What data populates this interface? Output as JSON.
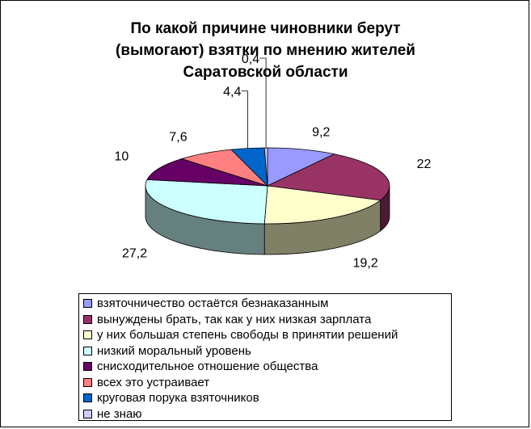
{
  "chart_data": {
    "type": "pie",
    "title": "По какой причине чиновники берут\n(вымогают) взятки по мнению жителей\nСаратовской области",
    "categories": [
      "взяточничество остаётся безнаказанным",
      "вынуждены брать, так как у них низкая зарплата",
      "у них большая степень свободы в принятии решений",
      "низкий моральный уровень",
      "снисходительное отношение общества",
      "всех это устраивает",
      "круговая порука взяточников",
      "не знаю"
    ],
    "values": [
      9.2,
      22,
      19.2,
      27.2,
      10,
      7.6,
      4.4,
      0.4
    ],
    "value_labels": [
      "9,2",
      "22",
      "19,2",
      "27,2",
      "10",
      "7,6",
      "4,4",
      "0,4"
    ],
    "colors": [
      "#9999FF",
      "#993366",
      "#FFFFCC",
      "#CCFFFF",
      "#660066",
      "#FF8080",
      "#0066CC",
      "#CCCCFF"
    ],
    "three_d": true,
    "legend_position": "bottom"
  }
}
